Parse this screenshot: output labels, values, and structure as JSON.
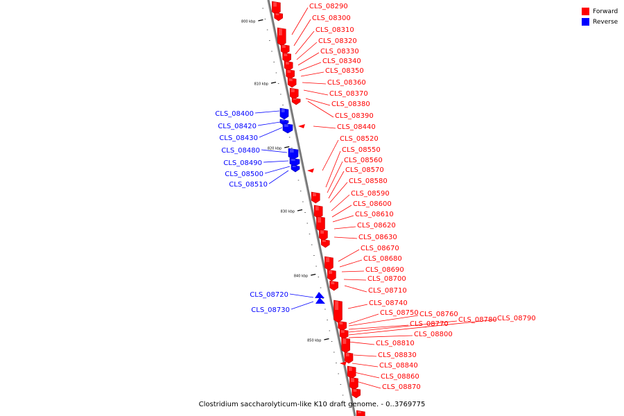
{
  "caption": "Clostridium saccharolyticum-like K10 draft genome. - 0..3769775",
  "legend": [
    {
      "label": "Forward",
      "color": "#ff0000"
    },
    {
      "label": "Reverse",
      "color": "#0000ff"
    }
  ],
  "colors": {
    "forward": "#ff0000",
    "reverse": "#0000ff",
    "backbone": "#888888"
  },
  "ticks": [
    "800 kbp",
    "810 kbp",
    "820 kbp",
    "830 kbp",
    "840 kbp",
    "850 kbp"
  ],
  "forward_genes": [
    "CLS_08290",
    "CLS_08300",
    "CLS_08310",
    "CLS_08320",
    "CLS_08330",
    "CLS_08340",
    "CLS_08350",
    "CLS_08360",
    "CLS_08370",
    "CLS_08380",
    "CLS_08390",
    "CLS_08440",
    "CLS_08520",
    "CLS_08550",
    "CLS_08560",
    "CLS_08570",
    "CLS_08580",
    "CLS_08590",
    "CLS_08600",
    "CLS_08610",
    "CLS_08620",
    "CLS_08630",
    "CLS_08670",
    "CLS_08680",
    "CLS_08690",
    "CLS_08700",
    "CLS_08710",
    "CLS_08740",
    "CLS_08750",
    "CLS_08760",
    "CLS_08770",
    "CLS_08780",
    "CLS_08790",
    "CLS_08800",
    "CLS_08810",
    "CLS_08830",
    "CLS_08840",
    "CLS_08860",
    "CLS_08870"
  ],
  "reverse_genes": [
    "CLS_08400",
    "CLS_08420",
    "CLS_08430",
    "CLS_08480",
    "CLS_08490",
    "CLS_08500",
    "CLS_08510",
    "CLS_08720",
    "CLS_08730"
  ]
}
